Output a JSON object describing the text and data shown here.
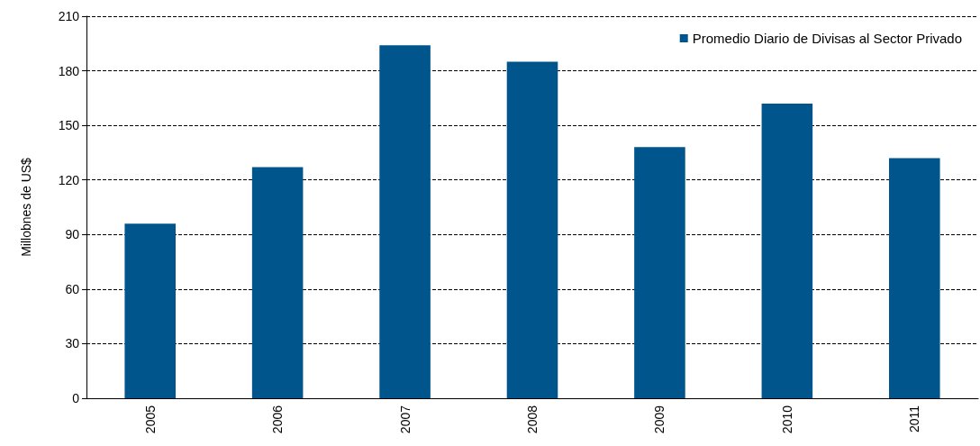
{
  "chart_data": {
    "type": "bar",
    "ylabel": "Millobnes de US$",
    "categories": [
      "2005",
      "2006",
      "2007",
      "2008",
      "2009",
      "2010",
      "2011"
    ],
    "series": [
      {
        "name": "Promedio Diario de Divisas al Sector Privado",
        "color": "#00558c",
        "values": [
          96,
          127,
          194,
          185,
          138,
          162,
          132
        ]
      }
    ],
    "ylim": [
      0,
      210
    ],
    "yticks": [
      0,
      30,
      60,
      90,
      120,
      150,
      180,
      210
    ],
    "grid": "y",
    "legend": "top right"
  }
}
